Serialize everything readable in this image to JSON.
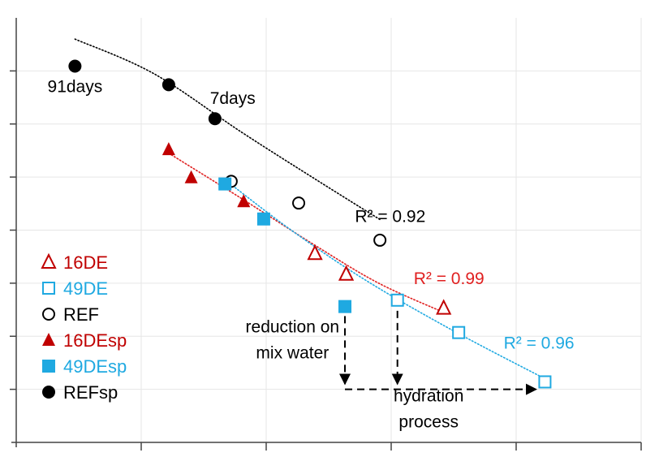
{
  "chart_data": {
    "type": "scatter",
    "title": "",
    "xlabel": "",
    "ylabel": "",
    "xlim": [
      0,
      5
    ],
    "ylim": [
      0,
      8
    ],
    "grid": true,
    "legend_position": "bottom-left",
    "colors": {
      "16DE": "#c00000",
      "49DE": "#1fa9e1",
      "REF": "#000000",
      "fit_16DE": "#e02020",
      "fit_49DE": "#1fa9e1",
      "fit_REF": "#000000",
      "axis": "#444444",
      "grid": "#e6e6e6",
      "annotation": "#000000"
    },
    "legend": [
      {
        "label": "16DE",
        "marker": "triangle-open",
        "series": "16DE",
        "text_color": "#c00000"
      },
      {
        "label": "49DE",
        "marker": "square-open",
        "series": "49DE",
        "text_color": "#1fa9e1"
      },
      {
        "label": "REF",
        "marker": "circle-open",
        "series": "REF",
        "text_color": "#000000"
      },
      {
        "label": "16DEsp",
        "marker": "triangle-filled",
        "series": "16DE",
        "text_color": "#c00000"
      },
      {
        "label": "49DEsp",
        "marker": "square-filled",
        "series": "49DE",
        "text_color": "#1fa9e1"
      },
      {
        "label": "REFsp",
        "marker": "circle-filled",
        "series": "REF",
        "text_color": "#000000"
      }
    ],
    "series": [
      {
        "key": "REFsp",
        "name": "REFsp",
        "marker": "circle-filled",
        "color": "#000000",
        "points": [
          {
            "x": 0.47,
            "y": 7.09
          },
          {
            "x": 1.22,
            "y": 6.74
          },
          {
            "x": 1.59,
            "y": 6.1
          }
        ]
      },
      {
        "key": "REF",
        "name": "REF",
        "marker": "circle-open",
        "color": "#000000",
        "points": [
          {
            "x": 1.72,
            "y": 4.92
          },
          {
            "x": 2.26,
            "y": 4.51
          },
          {
            "x": 2.91,
            "y": 3.81
          }
        ]
      },
      {
        "key": "16DEsp",
        "name": "16DEsp",
        "marker": "triangle-filled",
        "color": "#c00000",
        "points": [
          {
            "x": 1.22,
            "y": 5.52
          },
          {
            "x": 1.4,
            "y": 4.99
          },
          {
            "x": 1.82,
            "y": 4.54
          }
        ]
      },
      {
        "key": "16DE",
        "name": "16DE",
        "marker": "triangle-open",
        "color": "#c00000",
        "points": [
          {
            "x": 2.39,
            "y": 3.56
          },
          {
            "x": 2.64,
            "y": 3.17
          },
          {
            "x": 3.42,
            "y": 2.53
          }
        ]
      },
      {
        "key": "49DEsp",
        "name": "49DEsp",
        "marker": "square-filled",
        "color": "#1fa9e1",
        "points": [
          {
            "x": 1.67,
            "y": 4.87
          },
          {
            "x": 1.98,
            "y": 4.21
          },
          {
            "x": 2.63,
            "y": 2.56
          }
        ]
      },
      {
        "key": "49DE",
        "name": "49DE",
        "marker": "square-open",
        "color": "#1fa9e1",
        "points": [
          {
            "x": 3.05,
            "y": 2.68
          },
          {
            "x": 3.54,
            "y": 2.07
          },
          {
            "x": 4.23,
            "y": 1.14
          }
        ]
      }
    ],
    "trendlines": [
      {
        "key": "fit_REF",
        "series": "REF",
        "r2_label": "R² = 0.92",
        "color": "#000000",
        "points": [
          {
            "x": 0.47,
            "y": 7.6
          },
          {
            "x": 1.1,
            "y": 6.95
          },
          {
            "x": 1.8,
            "y": 5.85
          },
          {
            "x": 2.4,
            "y": 4.95
          },
          {
            "x": 2.91,
            "y": 4.2
          }
        ]
      },
      {
        "key": "fit_16DE",
        "series": "16DE",
        "r2_label": "R² = 0.99",
        "color": "#e02020",
        "points": [
          {
            "x": 1.22,
            "y": 5.45
          },
          {
            "x": 1.8,
            "y": 4.6
          },
          {
            "x": 2.4,
            "y": 3.7
          },
          {
            "x": 2.9,
            "y": 3.0
          },
          {
            "x": 3.42,
            "y": 2.45
          }
        ]
      },
      {
        "key": "fit_49DE",
        "series": "49DE",
        "r2_label": "R² = 0.96",
        "color": "#1fa9e1",
        "points": [
          {
            "x": 1.67,
            "y": 4.95
          },
          {
            "x": 2.2,
            "y": 4.0
          },
          {
            "x": 2.8,
            "y": 3.05
          },
          {
            "x": 3.5,
            "y": 2.1
          },
          {
            "x": 4.23,
            "y": 1.2
          }
        ]
      }
    ],
    "annotations": [
      {
        "key": "label-91days",
        "text": "91days",
        "x": 0.47,
        "y": 6.6
      },
      {
        "key": "label-7days",
        "text": "7days",
        "x": 1.55,
        "y": 6.38
      },
      {
        "key": "r2-ref",
        "text": "R² = 0.92",
        "x": 2.71,
        "y": 4.15,
        "color": "#000000"
      },
      {
        "key": "r2-16de",
        "text": "R² = 0.99",
        "x": 3.18,
        "y": 2.98,
        "color": "#e02020"
      },
      {
        "key": "r2-49de",
        "text": "R² = 0.96",
        "x": 3.9,
        "y": 1.77,
        "color": "#1fa9e1"
      },
      {
        "key": "reduction-line1",
        "text": "reduction on",
        "x": 2.21,
        "y": 2.07
      },
      {
        "key": "reduction-line2",
        "text": "mix water",
        "x": 2.21,
        "y": 1.58
      },
      {
        "key": "hydration-line1",
        "text": "hydration",
        "x": 3.3,
        "y": 0.77
      },
      {
        "key": "hydration-line2",
        "text": "process",
        "x": 3.3,
        "y": 0.28
      }
    ],
    "arrows": [
      {
        "key": "arrow-down-1",
        "from": {
          "x": 2.63,
          "y": 2.38
        },
        "to": {
          "x": 2.63,
          "y": 1.1
        }
      },
      {
        "key": "arrow-down-2",
        "from": {
          "x": 3.05,
          "y": 2.48
        },
        "to": {
          "x": 3.05,
          "y": 1.1
        }
      },
      {
        "key": "arrow-right",
        "from": {
          "x": 2.63,
          "y": 1.0
        },
        "to": {
          "x": 4.16,
          "y": 1.0
        }
      }
    ]
  }
}
